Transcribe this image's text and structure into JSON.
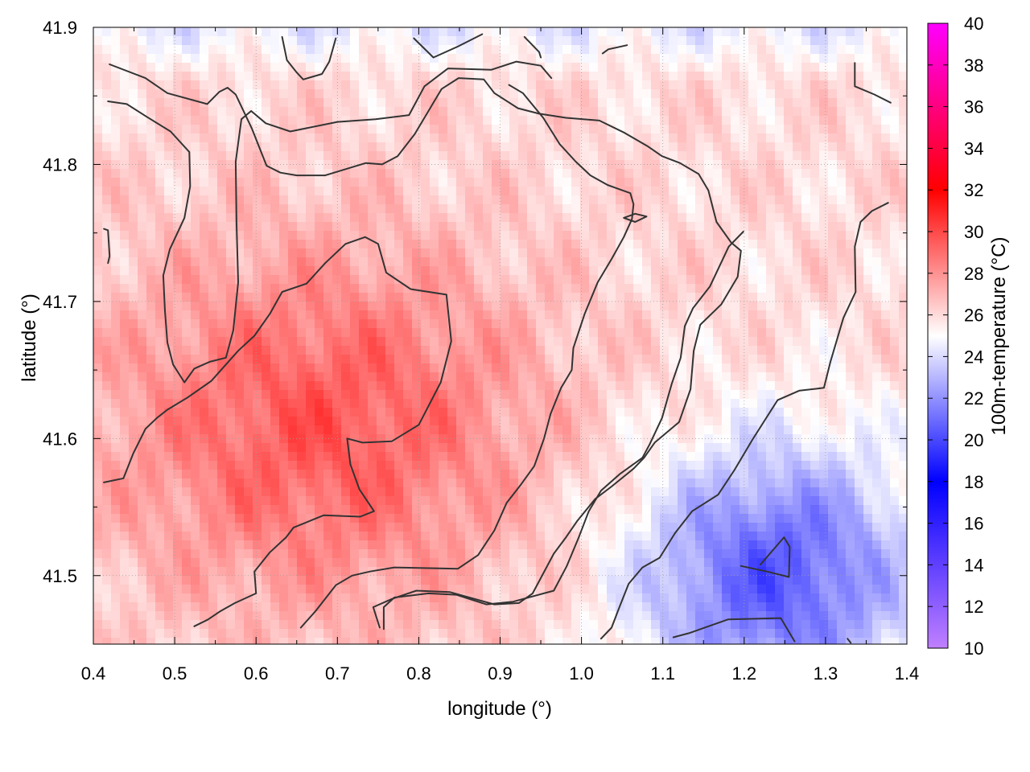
{
  "chart_data": {
    "type": "heatmap",
    "xlabel": "longitude (°)",
    "ylabel": "latitude (°)",
    "colorbar_label": "100m-temperature (°C)",
    "xlim": [
      0.4,
      1.4
    ],
    "ylim": [
      41.45,
      41.9
    ],
    "x_ticks": [
      0.4,
      0.5,
      0.6,
      0.7,
      0.8,
      0.9,
      1.0,
      1.1,
      1.2,
      1.3,
      1.4
    ],
    "x_tick_labels": [
      "0.4",
      "0.5",
      "0.6",
      "0.7",
      "0.8",
      "0.9",
      "1.0",
      "1.1",
      "1.2",
      "1.3",
      "1.4"
    ],
    "y_ticks": [
      41.5,
      41.6,
      41.7,
      41.8,
      41.9
    ],
    "y_tick_labels": [
      "41.5",
      "41.6",
      "41.7",
      "41.8",
      "41.9"
    ],
    "colorbar_range": [
      10,
      40
    ],
    "colorbar_ticks": [
      10,
      12,
      14,
      16,
      18,
      20,
      22,
      24,
      26,
      28,
      30,
      32,
      34,
      36,
      38,
      40
    ],
    "colorbar_tick_labels": [
      "10",
      "12",
      "14",
      "16",
      "18",
      "20",
      "22",
      "24",
      "26",
      "28",
      "30",
      "32",
      "34",
      "36",
      "38",
      "40"
    ],
    "colormap": [
      {
        "value": 10,
        "color": "#c080ff"
      },
      {
        "value": 18,
        "color": "#0000ff"
      },
      {
        "value": 25,
        "color": "#ffffff"
      },
      {
        "value": 32,
        "color": "#ff0000"
      },
      {
        "value": 40,
        "color": "#ff00ff"
      }
    ],
    "grid": true,
    "warm_center": {
      "lon": 0.68,
      "lat": 41.61,
      "temperature": 29.6
    },
    "cool_center": {
      "lon": 1.24,
      "lat": 41.5,
      "temperature": 20.5
    },
    "contour_color": "#333333",
    "contours": [
      [
        [
          0.42,
          41.873
        ],
        [
          0.464,
          41.863
        ],
        [
          0.491,
          41.852
        ],
        [
          0.54,
          41.844
        ],
        [
          0.555,
          41.853
        ],
        [
          0.565,
          41.856
        ],
        [
          0.575,
          41.851
        ],
        [
          0.595,
          41.826
        ],
        [
          0.613,
          41.799
        ],
        [
          0.63,
          41.794
        ],
        [
          0.65,
          41.792
        ],
        [
          0.685,
          41.792
        ],
        [
          0.735,
          41.801
        ],
        [
          0.755,
          41.8
        ],
        [
          0.774,
          41.806
        ],
        [
          0.795,
          41.822
        ],
        [
          0.812,
          41.839
        ],
        [
          0.828,
          41.855
        ],
        [
          0.849,
          41.863
        ],
        [
          0.88,
          41.862
        ],
        [
          0.893,
          41.852
        ],
        [
          0.922,
          41.841
        ],
        [
          0.948,
          41.837
        ],
        [
          0.981,
          41.834
        ],
        [
          1.022,
          41.832
        ],
        [
          1.053,
          41.823
        ],
        [
          1.082,
          41.813
        ],
        [
          1.099,
          41.806
        ],
        [
          1.121,
          41.801
        ],
        [
          1.144,
          41.793
        ],
        [
          1.156,
          41.781
        ],
        [
          1.166,
          41.758
        ],
        [
          1.184,
          41.743
        ],
        [
          1.196,
          41.737
        ],
        [
          1.192,
          41.718
        ],
        [
          1.172,
          41.698
        ],
        [
          1.146,
          41.683
        ],
        [
          1.138,
          41.664
        ],
        [
          1.134,
          41.636
        ],
        [
          1.12,
          41.612
        ],
        [
          1.09,
          41.597
        ],
        [
          1.077,
          41.586
        ],
        [
          1.064,
          41.578
        ],
        [
          1.037,
          41.565
        ],
        [
          1.017,
          41.556
        ],
        [
          0.995,
          41.54
        ],
        [
          0.981,
          41.528
        ],
        [
          0.966,
          41.516
        ],
        [
          0.94,
          41.487
        ],
        [
          0.923,
          41.48
        ],
        [
          0.893,
          41.479
        ],
        [
          0.838,
          41.488
        ],
        [
          0.797,
          41.489
        ],
        [
          0.767,
          41.483
        ],
        [
          0.744,
          41.477
        ],
        [
          0.752,
          41.462
        ]
      ],
      [
        [
          0.418,
          41.846
        ],
        [
          0.441,
          41.844
        ],
        [
          0.465,
          41.835
        ],
        [
          0.495,
          41.824
        ],
        [
          0.518,
          41.809
        ],
        [
          0.519,
          41.784
        ],
        [
          0.512,
          41.761
        ],
        [
          0.494,
          41.738
        ],
        [
          0.486,
          41.719
        ],
        [
          0.488,
          41.693
        ],
        [
          0.491,
          41.67
        ],
        [
          0.498,
          41.654
        ],
        [
          0.512,
          41.641
        ],
        [
          0.524,
          41.651
        ],
        [
          0.543,
          41.656
        ],
        [
          0.563,
          41.659
        ],
        [
          0.572,
          41.679
        ],
        [
          0.578,
          41.714
        ],
        [
          0.576,
          41.758
        ],
        [
          0.575,
          41.802
        ],
        [
          0.582,
          41.833
        ],
        [
          0.594,
          41.839
        ],
        [
          0.612,
          41.83
        ],
        [
          0.642,
          41.824
        ],
        [
          0.7,
          41.831
        ],
        [
          0.747,
          41.833
        ],
        [
          0.788,
          41.836
        ],
        [
          0.807,
          41.857
        ],
        [
          0.836,
          41.87
        ],
        [
          0.889,
          41.869
        ],
        [
          0.92,
          41.875
        ],
        [
          0.95,
          41.872
        ],
        [
          0.963,
          41.863
        ]
      ],
      [
        [
          0.413,
          41.568
        ],
        [
          0.437,
          41.571
        ],
        [
          0.449,
          41.589
        ],
        [
          0.464,
          41.607
        ],
        [
          0.478,
          41.615
        ],
        [
          0.491,
          41.621
        ],
        [
          0.516,
          41.63
        ],
        [
          0.545,
          41.642
        ],
        [
          0.578,
          41.664
        ],
        [
          0.598,
          41.675
        ],
        [
          0.617,
          41.691
        ],
        [
          0.632,
          41.707
        ],
        [
          0.662,
          41.713
        ],
        [
          0.685,
          41.728
        ],
        [
          0.71,
          41.742
        ],
        [
          0.734,
          41.747
        ],
        [
          0.75,
          41.742
        ],
        [
          0.76,
          41.721
        ],
        [
          0.79,
          41.709
        ],
        [
          0.834,
          41.705
        ],
        [
          0.84,
          41.671
        ],
        [
          0.827,
          41.641
        ],
        [
          0.8,
          41.61
        ],
        [
          0.767,
          41.598
        ],
        [
          0.731,
          41.597
        ],
        [
          0.712,
          41.6
        ],
        [
          0.716,
          41.581
        ],
        [
          0.727,
          41.563
        ],
        [
          0.745,
          41.547
        ],
        [
          0.728,
          41.543
        ],
        [
          0.683,
          41.544
        ],
        [
          0.646,
          41.535
        ],
        [
          0.637,
          41.528
        ],
        [
          0.617,
          41.517
        ],
        [
          0.598,
          41.503
        ],
        [
          0.6,
          41.487
        ],
        [
          0.574,
          41.48
        ],
        [
          0.556,
          41.474
        ],
        [
          0.541,
          41.468
        ],
        [
          0.524,
          41.463
        ]
      ],
      [
        [
          0.655,
          41.462
        ],
        [
          0.673,
          41.474
        ],
        [
          0.698,
          41.493
        ],
        [
          0.718,
          41.5
        ],
        [
          0.74,
          41.503
        ],
        [
          0.77,
          41.506
        ],
        [
          0.848,
          41.505
        ],
        [
          0.873,
          41.515
        ],
        [
          0.893,
          41.533
        ],
        [
          0.908,
          41.553
        ],
        [
          0.925,
          41.566
        ],
        [
          0.942,
          41.58
        ],
        [
          0.954,
          41.6
        ],
        [
          0.962,
          41.618
        ],
        [
          0.975,
          41.637
        ],
        [
          0.988,
          41.65
        ],
        [
          0.99,
          41.666
        ],
        [
          1.004,
          41.691
        ],
        [
          1.02,
          41.714
        ],
        [
          1.037,
          41.731
        ],
        [
          1.052,
          41.747
        ],
        [
          1.062,
          41.76
        ],
        [
          1.064,
          41.771
        ],
        [
          1.06,
          41.779
        ],
        [
          1.032,
          41.785
        ],
        [
          1.011,
          41.792
        ],
        [
          0.993,
          41.802
        ],
        [
          0.973,
          41.815
        ],
        [
          0.953,
          41.834
        ],
        [
          0.928,
          41.852
        ],
        [
          0.911,
          41.858
        ]
      ],
      [
        [
          1.024,
          41.454
        ],
        [
          1.037,
          41.462
        ],
        [
          1.046,
          41.476
        ],
        [
          1.058,
          41.494
        ],
        [
          1.075,
          41.506
        ],
        [
          1.096,
          41.513
        ],
        [
          1.115,
          41.531
        ],
        [
          1.136,
          41.547
        ],
        [
          1.168,
          41.559
        ],
        [
          1.188,
          41.577
        ],
        [
          1.21,
          41.599
        ],
        [
          1.226,
          41.614
        ],
        [
          1.241,
          41.628
        ],
        [
          1.268,
          41.635
        ],
        [
          1.298,
          41.637
        ],
        [
          1.306,
          41.656
        ],
        [
          1.322,
          41.688
        ],
        [
          1.337,
          41.707
        ],
        [
          1.336,
          41.74
        ],
        [
          1.343,
          41.758
        ],
        [
          1.357,
          41.766
        ],
        [
          1.377,
          41.772
        ]
      ],
      [
        [
          0.757,
          41.461
        ],
        [
          0.757,
          41.477
        ],
        [
          0.77,
          41.484
        ],
        [
          0.812,
          41.487
        ],
        [
          0.846,
          41.486
        ],
        [
          0.883,
          41.479
        ],
        [
          0.916,
          41.481
        ],
        [
          0.966,
          41.489
        ],
        [
          0.982,
          41.507
        ],
        [
          0.996,
          41.527
        ],
        [
          1.009,
          41.547
        ],
        [
          1.024,
          41.562
        ],
        [
          1.047,
          41.574
        ],
        [
          1.075,
          41.586
        ],
        [
          1.084,
          41.596
        ],
        [
          1.099,
          41.615
        ],
        [
          1.111,
          41.64
        ],
        [
          1.122,
          41.659
        ],
        [
          1.127,
          41.682
        ],
        [
          1.137,
          41.695
        ],
        [
          1.158,
          41.711
        ],
        [
          1.181,
          41.74
        ],
        [
          1.199,
          41.751
        ]
      ],
      [
        [
          1.196,
          41.507
        ],
        [
          1.228,
          41.503
        ],
        [
          1.255,
          41.499
        ],
        [
          1.256,
          41.521
        ],
        [
          1.249,
          41.528
        ],
        [
          1.22,
          41.508
        ]
      ],
      [
        [
          1.113,
          41.455
        ],
        [
          1.132,
          41.458
        ],
        [
          1.18,
          41.468
        ],
        [
          1.245,
          41.469
        ],
        [
          1.262,
          41.452
        ]
      ],
      [
        [
          1.052,
          41.761
        ],
        [
          1.066,
          41.764
        ],
        [
          1.08,
          41.762
        ],
        [
          1.066,
          41.758
        ],
        [
          1.052,
          41.761
        ]
      ],
      [
        [
          1.336,
          41.874
        ],
        [
          1.336,
          41.857
        ],
        [
          1.36,
          41.851
        ],
        [
          1.38,
          41.845
        ]
      ],
      [
        [
          0.413,
          41.753
        ],
        [
          0.418,
          41.752
        ],
        [
          0.42,
          41.733
        ],
        [
          0.418,
          41.728
        ]
      ],
      [
        [
          0.632,
          41.893
        ],
        [
          0.638,
          41.876
        ],
        [
          0.65,
          41.867
        ],
        [
          0.658,
          41.862
        ],
        [
          0.681,
          41.866
        ],
        [
          0.69,
          41.875
        ],
        [
          0.698,
          41.892
        ]
      ],
      [
        [
          0.794,
          41.892
        ],
        [
          0.818,
          41.878
        ],
        [
          0.848,
          41.886
        ],
        [
          0.878,
          41.895
        ]
      ],
      [
        [
          0.93,
          41.893
        ],
        [
          0.948,
          41.882
        ],
        [
          0.95,
          41.878
        ]
      ],
      [
        [
          1.026,
          41.881
        ],
        [
          1.033,
          41.884
        ],
        [
          1.056,
          41.887
        ]
      ],
      [
        [
          1.327,
          41.454
        ],
        [
          1.331,
          41.451
        ]
      ]
    ]
  }
}
